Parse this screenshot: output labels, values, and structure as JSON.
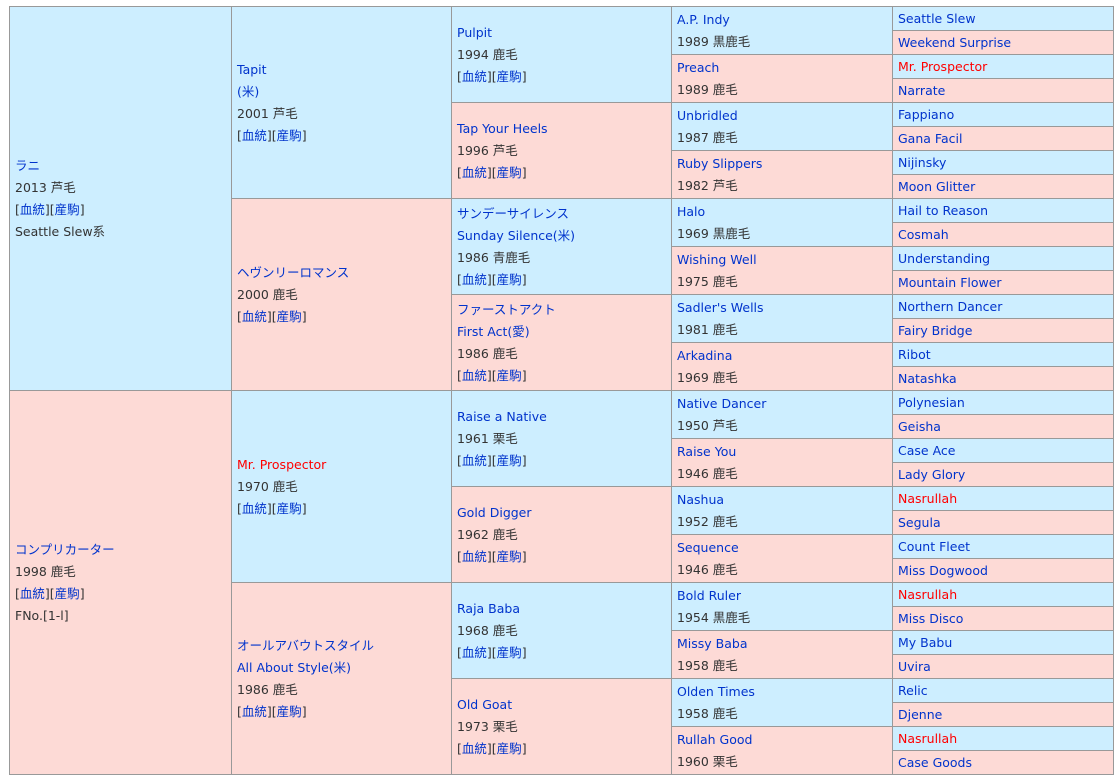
{
  "links": {
    "blood": "血統",
    "offspring": "産駒"
  },
  "colors": {
    "male_bg": "#cdeeff",
    "female_bg": "#fddad6",
    "link": "#0033cc",
    "inbreed": "#ff0000"
  },
  "gen1": [
    {
      "name": "ラニ",
      "info": "2013 芦毛",
      "links": true,
      "extra": "Seattle Slew系"
    },
    {
      "name": "コンプリカーター",
      "info": "1998 鹿毛",
      "links": true,
      "extra": "FNo.[1-l]"
    }
  ],
  "gen2": [
    {
      "name": "Tapit",
      "name2": "(米)",
      "info": "2001 芦毛",
      "links": true
    },
    {
      "name": "ヘヴンリーロマンス",
      "info": "2000 鹿毛",
      "links": true
    },
    {
      "name": "Mr. Prospector",
      "info": "1970 鹿毛",
      "links": true,
      "red": true
    },
    {
      "name": "オールアバウトスタイル",
      "name2": "All About Style(米)",
      "info": "1986 鹿毛",
      "links": true
    }
  ],
  "gen3": [
    {
      "name": "Pulpit",
      "info": "1994 鹿毛",
      "links": true
    },
    {
      "name": "Tap Your Heels",
      "info": "1996 芦毛",
      "links": true
    },
    {
      "name": "サンデーサイレンス",
      "name2": "Sunday Silence(米)",
      "info": "1986 青鹿毛",
      "links": true
    },
    {
      "name": "ファーストアクト",
      "name2": "First Act(愛)",
      "info": "1986 鹿毛",
      "links": true
    },
    {
      "name": "Raise a Native",
      "info": "1961 栗毛",
      "links": true
    },
    {
      "name": "Gold Digger",
      "info": "1962 鹿毛",
      "links": true
    },
    {
      "name": "Raja Baba",
      "info": "1968 鹿毛",
      "links": true
    },
    {
      "name": "Old Goat",
      "info": "1973 栗毛",
      "links": true
    }
  ],
  "gen4": [
    {
      "name": "A.P. Indy",
      "info": "1989 黒鹿毛"
    },
    {
      "name": "Preach",
      "info": "1989 鹿毛"
    },
    {
      "name": "Unbridled",
      "info": "1987 鹿毛"
    },
    {
      "name": "Ruby Slippers",
      "info": "1982 芦毛"
    },
    {
      "name": "Halo",
      "info": "1969 黒鹿毛"
    },
    {
      "name": "Wishing Well",
      "info": "1975 鹿毛"
    },
    {
      "name": "Sadler's Wells",
      "info": "1981 鹿毛"
    },
    {
      "name": "Arkadina",
      "info": "1969 鹿毛"
    },
    {
      "name": "Native Dancer",
      "info": "1950 芦毛"
    },
    {
      "name": "Raise You",
      "info": "1946 鹿毛"
    },
    {
      "name": "Nashua",
      "info": "1952 鹿毛"
    },
    {
      "name": "Sequence",
      "info": "1946 鹿毛"
    },
    {
      "name": "Bold Ruler",
      "info": "1954 黒鹿毛"
    },
    {
      "name": "Missy Baba",
      "info": "1958 鹿毛"
    },
    {
      "name": "Olden Times",
      "info": "1958 鹿毛"
    },
    {
      "name": "Rullah Good",
      "info": "1960 栗毛"
    }
  ],
  "gen5": [
    {
      "name": "Seattle Slew"
    },
    {
      "name": "Weekend Surprise"
    },
    {
      "name": "Mr. Prospector",
      "red": true
    },
    {
      "name": "Narrate"
    },
    {
      "name": "Fappiano"
    },
    {
      "name": "Gana Facil"
    },
    {
      "name": "Nijinsky"
    },
    {
      "name": "Moon Glitter"
    },
    {
      "name": "Hail to Reason"
    },
    {
      "name": "Cosmah"
    },
    {
      "name": "Understanding"
    },
    {
      "name": "Mountain Flower"
    },
    {
      "name": "Northern Dancer"
    },
    {
      "name": "Fairy Bridge"
    },
    {
      "name": "Ribot"
    },
    {
      "name": "Natashka"
    },
    {
      "name": "Polynesian"
    },
    {
      "name": "Geisha"
    },
    {
      "name": "Case Ace"
    },
    {
      "name": "Lady Glory"
    },
    {
      "name": "Nasrullah",
      "red": true
    },
    {
      "name": "Segula"
    },
    {
      "name": "Count Fleet"
    },
    {
      "name": "Miss Dogwood"
    },
    {
      "name": "Nasrullah",
      "red": true
    },
    {
      "name": "Miss Disco"
    },
    {
      "name": "My Babu"
    },
    {
      "name": "Uvira"
    },
    {
      "name": "Relic"
    },
    {
      "name": "Djenne"
    },
    {
      "name": "Nasrullah",
      "red": true
    },
    {
      "name": "Case Goods"
    }
  ]
}
